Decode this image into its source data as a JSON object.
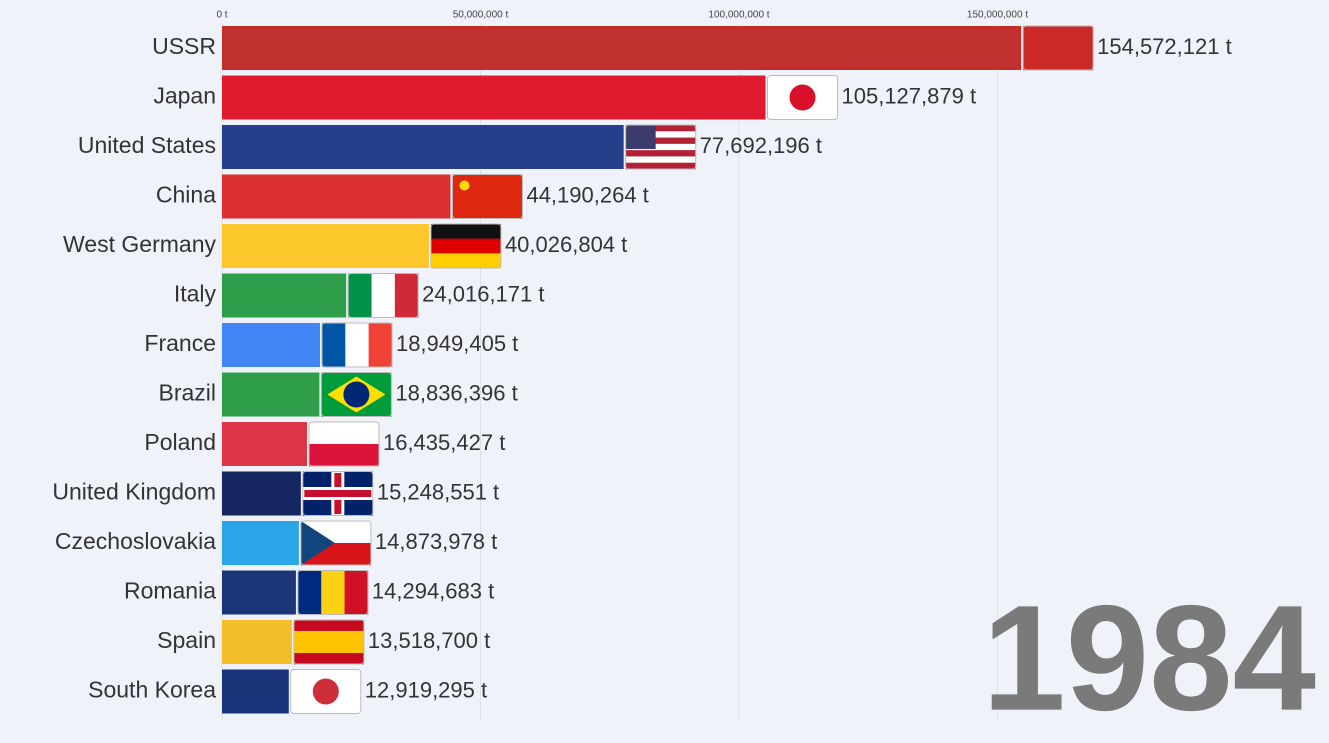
{
  "chart_data": {
    "type": "bar",
    "orientation": "horizontal",
    "categories": [
      "USSR",
      "Japan",
      "United States",
      "China",
      "West Germany",
      "Italy",
      "France",
      "Brazil",
      "Poland",
      "United Kingdom",
      "Czechoslovakia",
      "Romania",
      "Spain",
      "South Korea"
    ],
    "values": [
      154572121,
      105127879,
      77692196,
      44190264,
      40026804,
      24016171,
      18949405,
      18836396,
      16435427,
      15248551,
      14873978,
      14294683,
      13518700,
      12919295
    ],
    "value_labels": [
      "154,572,121 t",
      "105,127,879 t",
      "77,692,196 t",
      "44,190,264 t",
      "40,026,804 t",
      "24,016,171 t",
      "18,949,405 t",
      "18,836,396 t",
      "16,435,427 t",
      "15,248,551 t",
      "14,873,978 t",
      "14,294,683 t",
      "13,518,700 t",
      "12,919,295 t"
    ],
    "colors": [
      "#c0302e",
      "#e01a2e",
      "#263f8a",
      "#db3030",
      "#fcc72a",
      "#2e9e4a",
      "#4285f4",
      "#2e9e4a",
      "#dc3545",
      "#162660",
      "#2aa5e8",
      "#1c3578",
      "#f4bd2a",
      "#1b3378"
    ],
    "xlim": [
      0,
      200000000
    ],
    "xticks": [
      {
        "value": 0,
        "label": "0 t"
      },
      {
        "value": 50000000,
        "label": "50,000,000 t"
      },
      {
        "value": 100000000,
        "label": "100,000,000 t"
      },
      {
        "value": 150000000,
        "label": "150,000,000 t"
      }
    ],
    "grid": true,
    "annotation": "1984"
  }
}
